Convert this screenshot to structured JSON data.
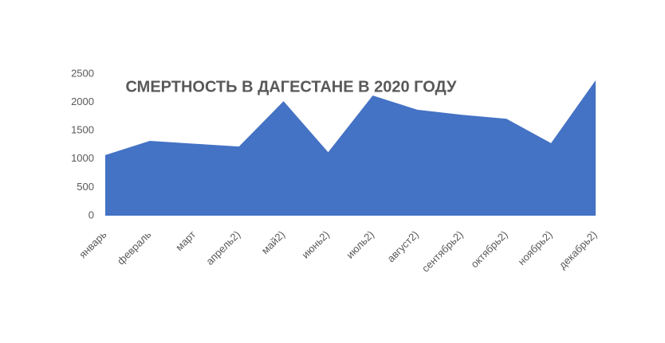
{
  "chart_data": {
    "type": "area",
    "title": "СМЕРТНОСТЬ В ДАГЕСТАНЕ В 2020 ГОДУ",
    "categories": [
      "январь",
      "февраль",
      "март",
      "апрель2)",
      "май2)",
      "июнь2)",
      "июль2)",
      "август2)",
      "сентябрь2)",
      "октябрь2)",
      "ноябрь2)",
      "декабрь2)"
    ],
    "values": [
      1070,
      1320,
      1270,
      1220,
      2020,
      1120,
      2120,
      1870,
      1780,
      1710,
      1280,
      2390
    ],
    "color": "#4472c4",
    "ylim": [
      0,
      2500
    ],
    "yticks": [
      0,
      500,
      1000,
      1500,
      2000,
      2500
    ],
    "grid": false
  }
}
